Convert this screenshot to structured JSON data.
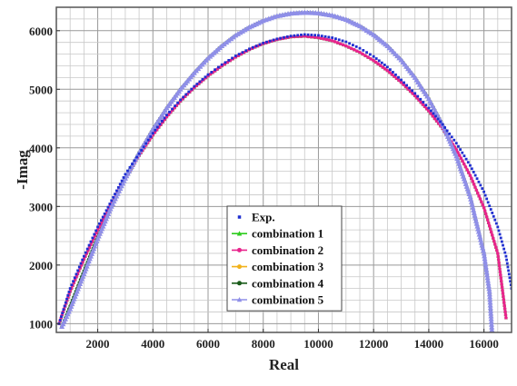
{
  "chart_data": {
    "type": "scatter",
    "xlabel": "Real",
    "ylabel": "-Imag",
    "xlim": [
      500,
      17000
    ],
    "ylim": [
      850,
      6400
    ],
    "xticks": [
      2000,
      4000,
      6000,
      8000,
      10000,
      12000,
      14000,
      16000
    ],
    "yticks": [
      1000,
      2000,
      3000,
      4000,
      5000,
      6000
    ],
    "grid": true,
    "legend_position": "bottom-center",
    "series": [
      {
        "name": "Exp.",
        "color": "#1f2fd0",
        "marker": "square",
        "points": [
          [
            600,
            1000
          ],
          [
            1000,
            1600
          ],
          [
            1500,
            2150
          ],
          [
            2000,
            2650
          ],
          [
            2500,
            3100
          ],
          [
            3000,
            3550
          ],
          [
            3500,
            3900
          ],
          [
            4000,
            4250
          ],
          [
            4500,
            4560
          ],
          [
            5000,
            4820
          ],
          [
            5500,
            5050
          ],
          [
            6000,
            5250
          ],
          [
            6500,
            5420
          ],
          [
            7000,
            5570
          ],
          [
            7500,
            5690
          ],
          [
            8000,
            5790
          ],
          [
            8500,
            5860
          ],
          [
            9000,
            5910
          ],
          [
            9500,
            5935
          ],
          [
            10000,
            5920
          ],
          [
            10500,
            5880
          ],
          [
            11000,
            5810
          ],
          [
            11500,
            5700
          ],
          [
            12000,
            5560
          ],
          [
            12500,
            5380
          ],
          [
            13000,
            5160
          ],
          [
            13500,
            4930
          ],
          [
            14000,
            4680
          ],
          [
            14500,
            4400
          ],
          [
            15000,
            4080
          ],
          [
            15500,
            3700
          ],
          [
            16000,
            3250
          ],
          [
            16500,
            2650
          ],
          [
            16800,
            2150
          ],
          [
            17000,
            1600
          ]
        ]
      },
      {
        "name": "combination 1",
        "color": "#2ecc1e",
        "marker": "triangle",
        "points": [
          [
            600,
            1000
          ],
          [
            1000,
            1550
          ],
          [
            1500,
            2100
          ],
          [
            2000,
            2600
          ],
          [
            2500,
            3050
          ],
          [
            3000,
            3480
          ],
          [
            3500,
            3870
          ],
          [
            4000,
            4220
          ],
          [
            4500,
            4530
          ],
          [
            5000,
            4800
          ],
          [
            5500,
            5030
          ],
          [
            6000,
            5230
          ],
          [
            6500,
            5400
          ],
          [
            7000,
            5550
          ],
          [
            7500,
            5680
          ],
          [
            8000,
            5780
          ],
          [
            8500,
            5850
          ],
          [
            9000,
            5895
          ],
          [
            9500,
            5905
          ],
          [
            10000,
            5880
          ],
          [
            10500,
            5830
          ],
          [
            11000,
            5740
          ],
          [
            11500,
            5630
          ],
          [
            12000,
            5490
          ],
          [
            12500,
            5320
          ],
          [
            13000,
            5120
          ],
          [
            13500,
            4890
          ],
          [
            14000,
            4630
          ],
          [
            14500,
            4330
          ],
          [
            15000,
            3970
          ],
          [
            15500,
            3530
          ],
          [
            16000,
            2980
          ],
          [
            16500,
            2200
          ],
          [
            16800,
            1100
          ]
        ]
      },
      {
        "name": "combination 2",
        "color": "#e8258c",
        "marker": "circle",
        "points": [
          [
            600,
            1000
          ],
          [
            1000,
            1550
          ],
          [
            1500,
            2100
          ],
          [
            2000,
            2600
          ],
          [
            2500,
            3050
          ],
          [
            3000,
            3480
          ],
          [
            3500,
            3870
          ],
          [
            4000,
            4220
          ],
          [
            4500,
            4530
          ],
          [
            5000,
            4800
          ],
          [
            5500,
            5030
          ],
          [
            6000,
            5230
          ],
          [
            6500,
            5400
          ],
          [
            7000,
            5550
          ],
          [
            7500,
            5680
          ],
          [
            8000,
            5780
          ],
          [
            8500,
            5850
          ],
          [
            9000,
            5895
          ],
          [
            9500,
            5905
          ],
          [
            10000,
            5880
          ],
          [
            10500,
            5830
          ],
          [
            11000,
            5740
          ],
          [
            11500,
            5630
          ],
          [
            12000,
            5490
          ],
          [
            12500,
            5320
          ],
          [
            13000,
            5120
          ],
          [
            13500,
            4890
          ],
          [
            14000,
            4630
          ],
          [
            14500,
            4330
          ],
          [
            15000,
            3970
          ],
          [
            15500,
            3530
          ],
          [
            16000,
            2980
          ],
          [
            16500,
            2200
          ],
          [
            16800,
            1100
          ]
        ]
      },
      {
        "name": "combination 3",
        "color": "#f2b21a",
        "marker": "circle",
        "points": [
          [
            700,
            950
          ],
          [
            1000,
            1250
          ],
          [
            1500,
            1850
          ],
          [
            2000,
            2450
          ],
          [
            2500,
            3000
          ],
          [
            3000,
            3480
          ],
          [
            3500,
            3920
          ],
          [
            4000,
            4320
          ],
          [
            4500,
            4680
          ],
          [
            5000,
            5000
          ],
          [
            5500,
            5280
          ],
          [
            6000,
            5530
          ],
          [
            6500,
            5740
          ],
          [
            7000,
            5920
          ],
          [
            7500,
            6060
          ],
          [
            8000,
            6170
          ],
          [
            8500,
            6250
          ],
          [
            9000,
            6295
          ],
          [
            9500,
            6310
          ],
          [
            10000,
            6300
          ],
          [
            10500,
            6260
          ],
          [
            11000,
            6190
          ],
          [
            11500,
            6080
          ],
          [
            12000,
            5930
          ],
          [
            12500,
            5740
          ],
          [
            13000,
            5500
          ],
          [
            13500,
            5200
          ],
          [
            14000,
            4840
          ],
          [
            14500,
            4400
          ],
          [
            15000,
            3860
          ],
          [
            15500,
            3170
          ],
          [
            16000,
            2200
          ],
          [
            16200,
            1550
          ],
          [
            16300,
            800
          ]
        ]
      },
      {
        "name": "combination 4",
        "color": "#1a5c1a",
        "marker": "circle",
        "points": [
          [
            700,
            950
          ],
          [
            1000,
            1300
          ],
          [
            1500,
            1900
          ],
          [
            2000,
            2480
          ],
          [
            2500,
            3020
          ],
          [
            3000,
            3490
          ],
          [
            3500,
            3920
          ],
          [
            4000,
            4320
          ],
          [
            4500,
            4680
          ],
          [
            5000,
            5000
          ],
          [
            5500,
            5280
          ],
          [
            6000,
            5530
          ],
          [
            6500,
            5740
          ],
          [
            7000,
            5920
          ],
          [
            7500,
            6060
          ],
          [
            8000,
            6170
          ],
          [
            8500,
            6250
          ],
          [
            9000,
            6295
          ],
          [
            9500,
            6310
          ],
          [
            10000,
            6300
          ],
          [
            10500,
            6260
          ],
          [
            11000,
            6190
          ],
          [
            11500,
            6080
          ],
          [
            12000,
            5930
          ],
          [
            12500,
            5740
          ],
          [
            13000,
            5500
          ],
          [
            13500,
            5200
          ],
          [
            14000,
            4840
          ],
          [
            14500,
            4400
          ],
          [
            15000,
            3860
          ],
          [
            15500,
            3170
          ],
          [
            16000,
            2200
          ],
          [
            16200,
            1550
          ],
          [
            16300,
            800
          ]
        ]
      },
      {
        "name": "combination 5",
        "color": "#8f8fe8",
        "marker": "triangle",
        "points": [
          [
            700,
            950
          ],
          [
            1000,
            1250
          ],
          [
            1500,
            1850
          ],
          [
            2000,
            2450
          ],
          [
            2500,
            3000
          ],
          [
            3000,
            3480
          ],
          [
            3500,
            3920
          ],
          [
            4000,
            4320
          ],
          [
            4500,
            4680
          ],
          [
            5000,
            5000
          ],
          [
            5500,
            5280
          ],
          [
            6000,
            5530
          ],
          [
            6500,
            5740
          ],
          [
            7000,
            5920
          ],
          [
            7500,
            6060
          ],
          [
            8000,
            6170
          ],
          [
            8500,
            6250
          ],
          [
            9000,
            6295
          ],
          [
            9500,
            6310
          ],
          [
            10000,
            6300
          ],
          [
            10500,
            6260
          ],
          [
            11000,
            6190
          ],
          [
            11500,
            6080
          ],
          [
            12000,
            5930
          ],
          [
            12500,
            5740
          ],
          [
            13000,
            5500
          ],
          [
            13500,
            5200
          ],
          [
            14000,
            4840
          ],
          [
            14500,
            4400
          ],
          [
            15000,
            3860
          ],
          [
            15500,
            3170
          ],
          [
            16000,
            2200
          ],
          [
            16200,
            1550
          ],
          [
            16300,
            800
          ]
        ]
      }
    ]
  }
}
